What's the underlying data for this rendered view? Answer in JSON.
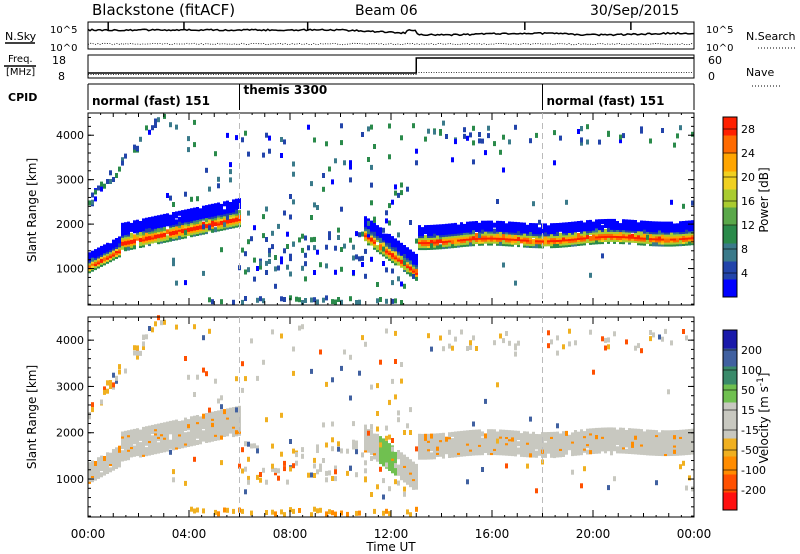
{
  "header": {
    "title": "Blackstone (fitACF)",
    "beam": "Beam 06",
    "date": "30/Sep/2015"
  },
  "noise_panel": {
    "left_label": "N.Sky",
    "left_ticks": [
      "10^5",
      "10^0"
    ],
    "right_ticks": [
      "10^5",
      "10^0"
    ],
    "right_label": "N.Search"
  },
  "freq_panel": {
    "left_label_1": "Freq.",
    "left_label_2": "[MHz]",
    "left_ticks": [
      "18",
      "8"
    ],
    "right_ticks": [
      "60",
      "0"
    ],
    "right_label": "Nave"
  },
  "cpid_panel": {
    "label": "CPID",
    "segments": [
      {
        "start_hr": 0,
        "end_hr": 6,
        "label": "normal (fast) 151"
      },
      {
        "start_hr": 6,
        "end_hr": 18,
        "label": "themis 3300"
      },
      {
        "start_hr": 18,
        "end_hr": 24,
        "label": "normal (fast) 151"
      }
    ]
  },
  "colors": {
    "power_scale": [
      "#0000ff",
      "#2244aa",
      "#3a7a8a",
      "#2a8a4a",
      "#5aa84a",
      "#aacc30",
      "#f0d020",
      "#ffa500",
      "#ff6a00",
      "#ff2000"
    ],
    "velocity_scale": [
      "#1a1aaa",
      "#4060a0",
      "#3a8a6a",
      "#70c050",
      "#c8c8c0",
      "#c8c8c0",
      "#f0b020",
      "#ff8c00",
      "#ff5000",
      "#ff1010"
    ]
  },
  "chart_data": [
    {
      "type": "heatmap",
      "name": "power",
      "x": {
        "label": "Time UT",
        "min_hr": 0,
        "max_hr": 24,
        "ticks": [
          "00:00",
          "04:00",
          "08:00",
          "12:00",
          "16:00",
          "20:00",
          "00:00"
        ]
      },
      "y": {
        "label": "Slant Range [km]",
        "min": 180,
        "max": 4500,
        "ticks": [
          1000,
          2000,
          3000,
          4000
        ]
      },
      "colorbar": {
        "label": "Power [dB]",
        "ticks": [
          28,
          24,
          20,
          16,
          12,
          8,
          4
        ],
        "range": [
          0,
          30
        ]
      },
      "features": [
        {
          "desc": "main band",
          "segments": [
            {
              "t": [
                0,
                1.2
              ],
              "r": [
                1100,
                1500
              ]
            },
            {
              "t": [
                1.2,
                6
              ],
              "r": [
                1600,
                2500
              ]
            },
            {
              "t": [
                10.9,
                13
              ],
              "r": [
                1000,
                1900
              ]
            },
            {
              "t": [
                13,
                24
              ],
              "r": [
                1550,
                2050
              ]
            }
          ]
        }
      ]
    },
    {
      "type": "heatmap",
      "name": "velocity",
      "x": {
        "label": "Time UT",
        "min_hr": 0,
        "max_hr": 24,
        "ticks": [
          "00:00",
          "04:00",
          "08:00",
          "12:00",
          "16:00",
          "20:00",
          "00:00"
        ]
      },
      "y": {
        "label": "Slant Range [km]",
        "min": 180,
        "max": 4500,
        "ticks": [
          1000,
          2000,
          3000,
          4000
        ]
      },
      "colorbar": {
        "label": "Velocity [m s^-1]",
        "ticks": [
          200,
          100,
          50,
          15,
          -15,
          -50,
          -100,
          -200
        ]
      }
    }
  ],
  "time_axis_label": "Time UT"
}
